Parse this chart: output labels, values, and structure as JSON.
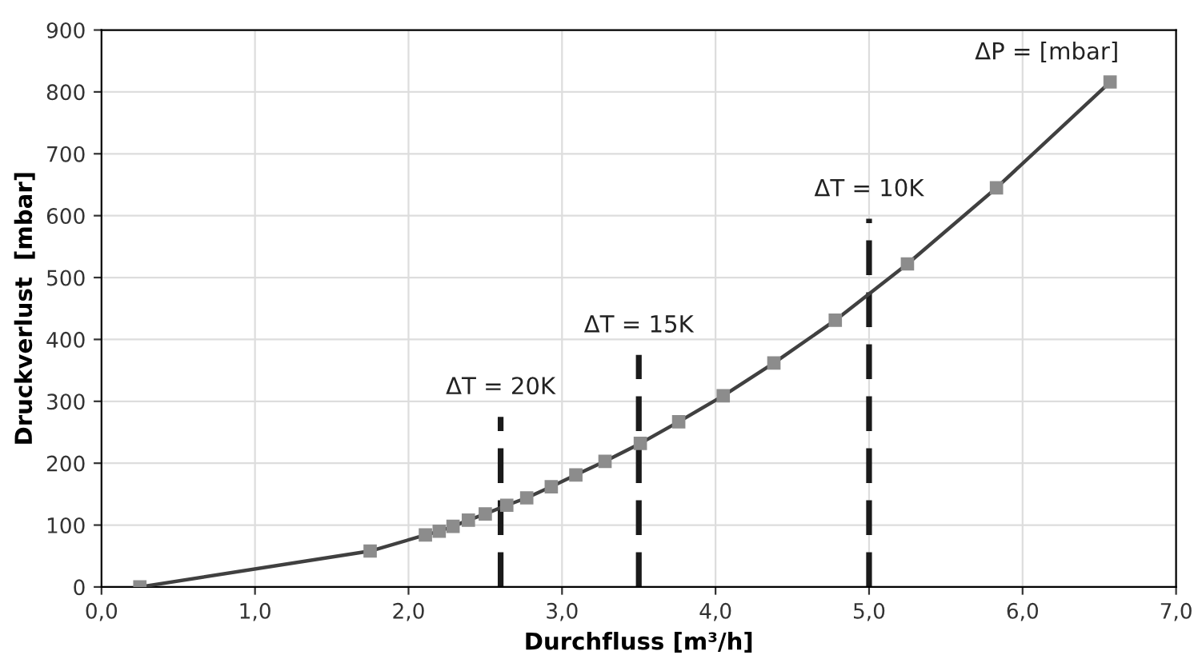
{
  "chart_data": {
    "type": "line",
    "xlabel": "Durchfluss [m³/h]",
    "ylabel": "Druckverlust  [mbar]",
    "xlim": [
      0,
      7
    ],
    "xticks": [
      {
        "value": 0,
        "label": "0,0"
      },
      {
        "value": 1,
        "label": "1,0"
      },
      {
        "value": 2,
        "label": "2,0"
      },
      {
        "value": 3,
        "label": "3,0"
      },
      {
        "value": 4,
        "label": "4,0"
      },
      {
        "value": 5,
        "label": "5,0"
      },
      {
        "value": 6,
        "label": "6,0"
      },
      {
        "value": 7,
        "label": "7,0"
      }
    ],
    "ylim": [
      0,
      900
    ],
    "yticks": [
      0,
      100,
      200,
      300,
      400,
      500,
      600,
      700,
      800,
      900
    ],
    "grid": true,
    "series": [
      {
        "color": "#404040",
        "marker": "square",
        "x": [
          0.25,
          1.75,
          2.11,
          2.2,
          2.29,
          2.39,
          2.5,
          2.64,
          2.77,
          2.93,
          3.09,
          3.28,
          3.51,
          3.76,
          4.05,
          4.38,
          4.78,
          5.25,
          5.83,
          6.57
        ],
        "values": [
          0,
          58,
          84,
          90,
          98,
          108,
          118,
          132,
          144,
          162,
          181,
          203,
          232,
          267,
          309,
          362,
          431,
          522,
          645,
          816
        ]
      },
      {
        "color": "#1a1a1a",
        "marker": "none",
        "line_style": "dashed",
        "x": [
          2.6,
          2.6
        ],
        "values": [
          0,
          275
        ]
      },
      {
        "color": "#1a1a1a",
        "marker": "none",
        "line_style": "dashed",
        "x": [
          3.5,
          3.5
        ],
        "values": [
          0,
          375
        ]
      },
      {
        "color": "#1a1a1a",
        "marker": "none",
        "line_style": "dashed",
        "x": [
          5.0,
          5.0
        ],
        "values": [
          0,
          595
        ]
      }
    ],
    "annotations": [
      {
        "text": "ΔT = 20K",
        "x": 2.6,
        "y": 275
      },
      {
        "text": "ΔT = 15K",
        "x": 3.5,
        "y": 375
      },
      {
        "text": "ΔT = 10K",
        "x": 5.0,
        "y": 595
      },
      {
        "text": "ΔP = [mbar]",
        "x": 6.57,
        "y": 816
      }
    ]
  }
}
